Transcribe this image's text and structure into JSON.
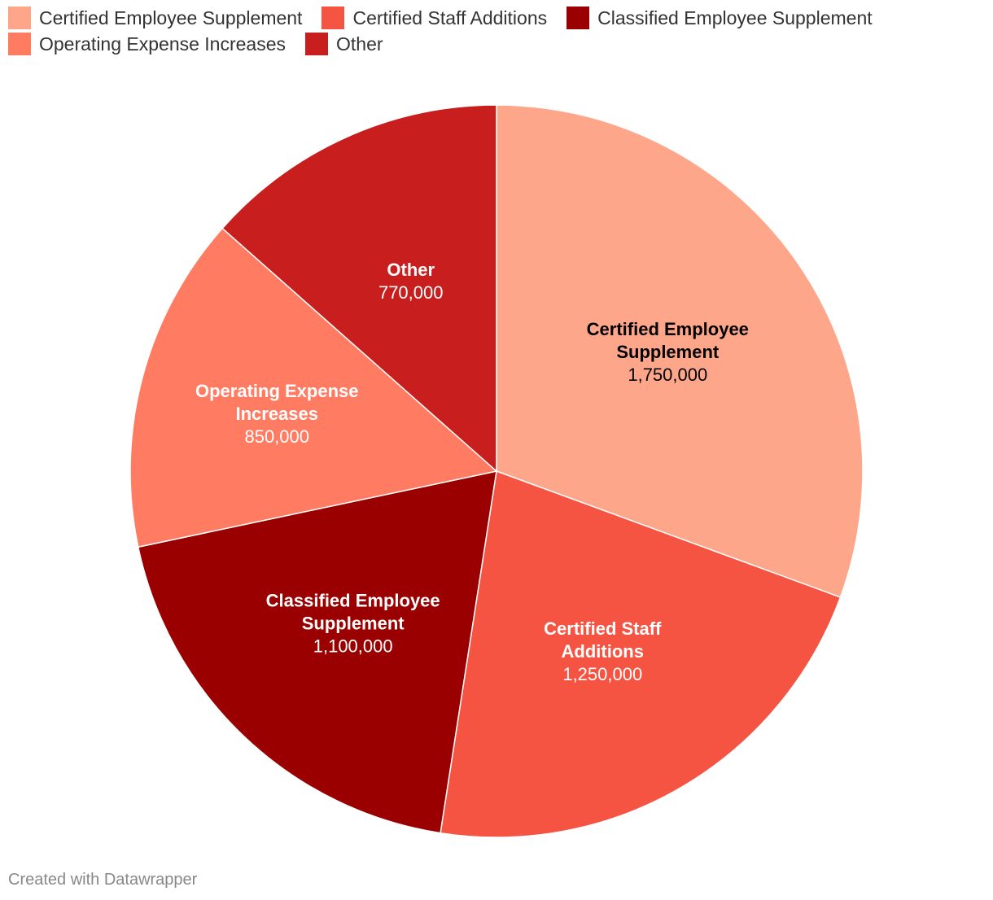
{
  "chart_data": {
    "type": "pie",
    "title": "",
    "slices": [
      {
        "label": "Certified Employee Supplement",
        "label_lines": [
          "Certified Employee",
          "Supplement"
        ],
        "value": 1750000,
        "value_label": "1,750,000",
        "color": "#fda68a",
        "label_color": "#000000"
      },
      {
        "label": "Certified Staff Additions",
        "label_lines": [
          "Certified Staff",
          "Additions"
        ],
        "value": 1250000,
        "value_label": "1,250,000",
        "color": "#f55442",
        "label_color": "#ffffff"
      },
      {
        "label": "Classified Employee Supplement",
        "label_lines": [
          "Classified Employee",
          "Supplement"
        ],
        "value": 1100000,
        "value_label": "1,100,000",
        "color": "#9a0000",
        "label_color": "#ffffff"
      },
      {
        "label": "Operating Expense Increases",
        "label_lines": [
          "Operating Expense",
          "Increases"
        ],
        "value": 850000,
        "value_label": "850,000",
        "color": "#ff7b62",
        "label_color": "#ffffff"
      },
      {
        "label": "Other",
        "label_lines": [
          "Other"
        ],
        "value": 770000,
        "value_label": "770,000",
        "color": "#c91e1e",
        "label_color": "#ffffff"
      }
    ],
    "legend_position": "top-left",
    "start_angle": "12 o'clock",
    "direction": "clockwise"
  },
  "footer": {
    "credit": "Created with Datawrapper"
  }
}
